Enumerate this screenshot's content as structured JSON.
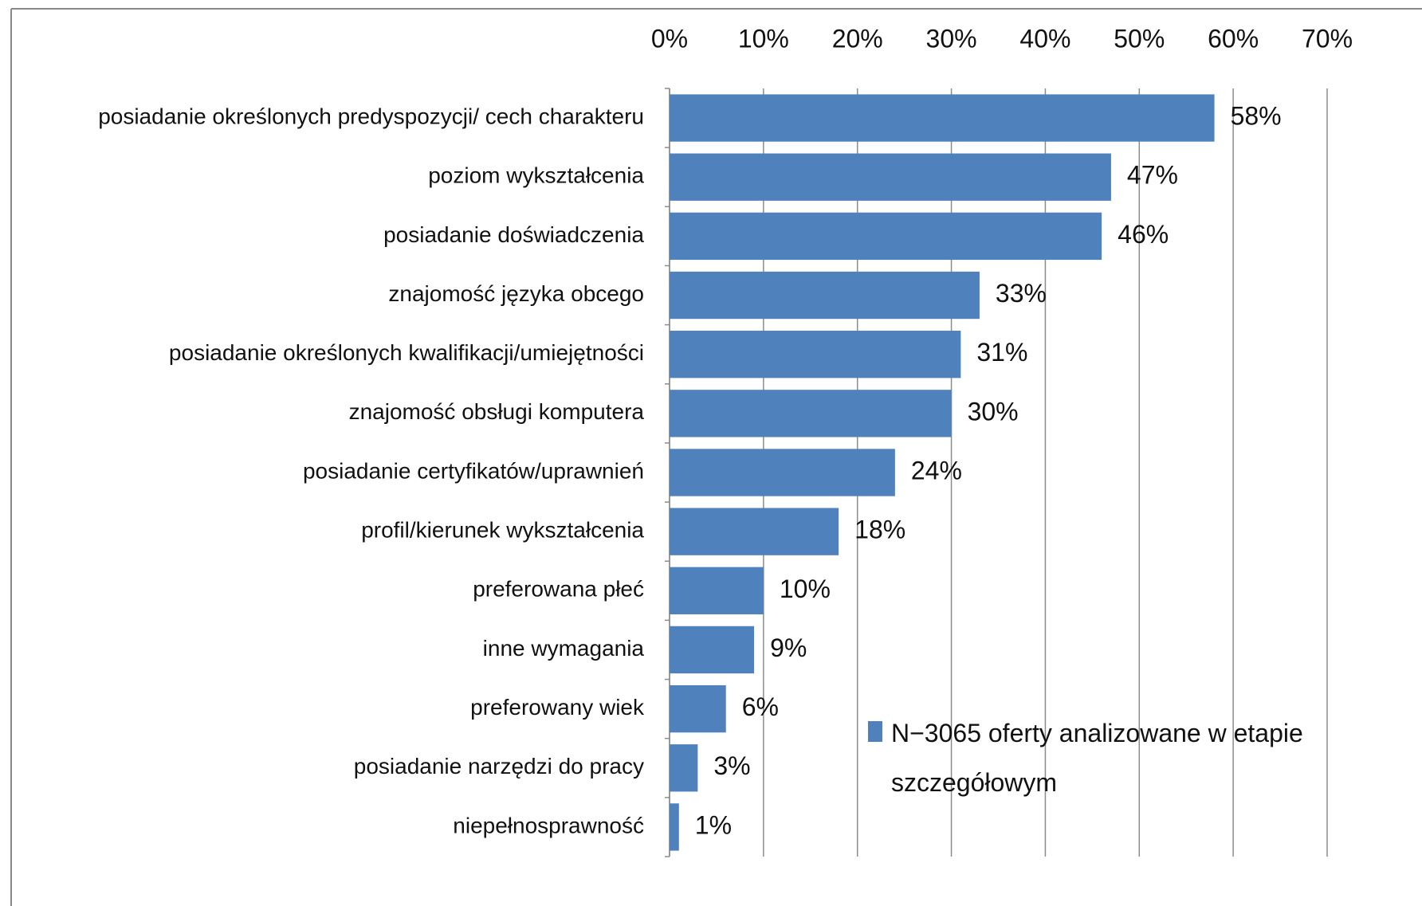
{
  "chart_data": {
    "type": "bar",
    "orientation": "horizontal",
    "categories": [
      "posiadanie określonych predyspozycji/ cech charakteru",
      "poziom wykształcenia",
      "posiadanie doświadczenia",
      "znajomość języka obcego",
      "posiadanie określonych kwalifikacji/umiejętności",
      "znajomość obsługi komputera",
      "posiadanie certyfikatów/uprawnień",
      "profil/kierunek wykształcenia",
      "preferowana płeć",
      "inne wymagania",
      "preferowany wiek",
      "posiadanie narzędzi do pracy",
      "niepełnosprawność"
    ],
    "series": [
      {
        "name": "N−3065 oferty analizowane w etapie szczegółowym",
        "color": "#4f81bd",
        "values": [
          58,
          47,
          46,
          33,
          31,
          30,
          24,
          18,
          10,
          9,
          6,
          3,
          1
        ],
        "value_labels": [
          "58%",
          "47%",
          "46%",
          "33%",
          "31%",
          "30%",
          "24%",
          "18%",
          "10%",
          "9%",
          "6%",
          "3%",
          "1%"
        ]
      }
    ],
    "xlim": [
      0,
      70
    ],
    "xticks": [
      {
        "value": 0,
        "label": "0%"
      },
      {
        "value": 10,
        "label": "10%"
      },
      {
        "value": 20,
        "label": "20%"
      },
      {
        "value": 30,
        "label": "30%"
      },
      {
        "value": 40,
        "label": "40%"
      },
      {
        "value": 50,
        "label": "50%"
      },
      {
        "value": 60,
        "label": "60%"
      },
      {
        "value": 70,
        "label": "70%"
      }
    ],
    "grid": true,
    "legend": "bottom-right"
  }
}
